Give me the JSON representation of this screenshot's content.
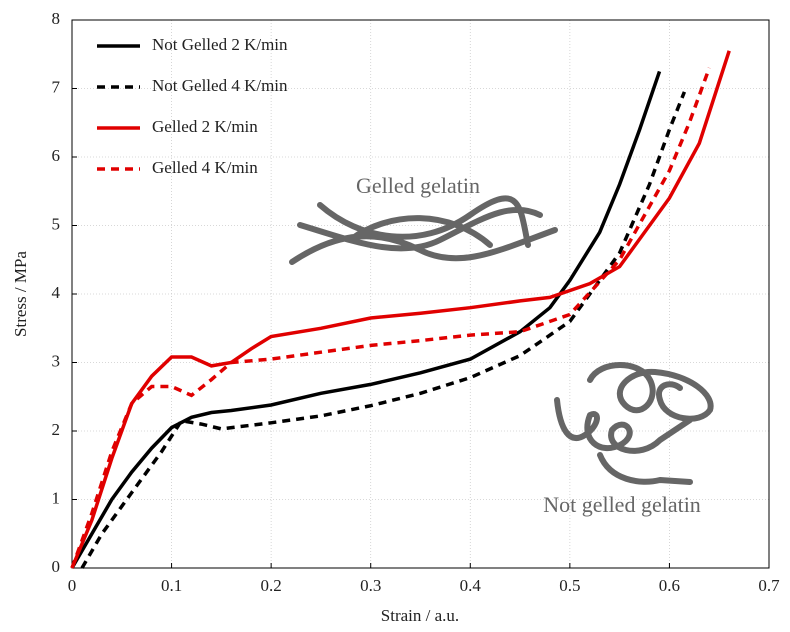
{
  "chart_data": {
    "type": "line",
    "xlabel": "Strain  /  a.u.",
    "ylabel": "Stress  /  MPa",
    "xlim": [
      0,
      0.7
    ],
    "ylim": [
      0,
      8
    ],
    "xticks": [
      0,
      0.1,
      0.2,
      0.3,
      0.4,
      0.5,
      0.6,
      0.7
    ],
    "yticks": [
      0,
      1,
      2,
      3,
      4,
      5,
      6,
      7,
      8
    ],
    "grid": true,
    "legend": "upper left",
    "annotations": [
      "Gelled gelatin",
      "Not gelled gelatin"
    ],
    "series": [
      {
        "name": "Not Gelled 2 K/min",
        "color": "#000000",
        "style": "solid",
        "x": [
          0,
          0.02,
          0.04,
          0.06,
          0.08,
          0.1,
          0.12,
          0.14,
          0.16,
          0.2,
          0.25,
          0.3,
          0.35,
          0.4,
          0.45,
          0.48,
          0.5,
          0.53,
          0.55,
          0.57,
          0.59
        ],
        "values": [
          0,
          0.5,
          1.0,
          1.4,
          1.75,
          2.05,
          2.2,
          2.27,
          2.3,
          2.38,
          2.55,
          2.68,
          2.85,
          3.05,
          3.45,
          3.8,
          4.2,
          4.9,
          5.6,
          6.4,
          7.25
        ]
      },
      {
        "name": "Not Gelled 4 K/min",
        "color": "#000000",
        "style": "dashed",
        "x": [
          0.01,
          0.03,
          0.06,
          0.09,
          0.11,
          0.13,
          0.15,
          0.2,
          0.25,
          0.3,
          0.35,
          0.4,
          0.45,
          0.5,
          0.55,
          0.58,
          0.6,
          0.615
        ],
        "values": [
          0,
          0.5,
          1.1,
          1.7,
          2.15,
          2.1,
          2.03,
          2.12,
          2.22,
          2.37,
          2.55,
          2.78,
          3.1,
          3.6,
          4.6,
          5.6,
          6.4,
          6.95
        ]
      },
      {
        "name": "Gelled 2 K/min",
        "color": "#e00000",
        "style": "solid",
        "x": [
          0,
          0.02,
          0.04,
          0.06,
          0.08,
          0.1,
          0.12,
          0.14,
          0.16,
          0.18,
          0.2,
          0.25,
          0.3,
          0.35,
          0.4,
          0.45,
          0.48,
          0.52,
          0.55,
          0.6,
          0.63,
          0.66
        ],
        "values": [
          0,
          0.7,
          1.6,
          2.4,
          2.8,
          3.08,
          3.08,
          2.95,
          3.0,
          3.2,
          3.38,
          3.5,
          3.65,
          3.72,
          3.8,
          3.9,
          3.95,
          4.15,
          4.4,
          5.4,
          6.2,
          7.55
        ]
      },
      {
        "name": "Gelled 4 K/min",
        "color": "#e00000",
        "style": "dashed",
        "x": [
          0,
          0.02,
          0.04,
          0.06,
          0.08,
          0.1,
          0.12,
          0.14,
          0.16,
          0.2,
          0.25,
          0.3,
          0.35,
          0.4,
          0.45,
          0.5,
          0.55,
          0.6,
          0.62,
          0.64
        ],
        "values": [
          0,
          0.8,
          1.7,
          2.4,
          2.65,
          2.65,
          2.52,
          2.75,
          3.0,
          3.05,
          3.15,
          3.25,
          3.32,
          3.4,
          3.45,
          3.7,
          4.5,
          5.8,
          6.5,
          7.3
        ]
      }
    ]
  }
}
